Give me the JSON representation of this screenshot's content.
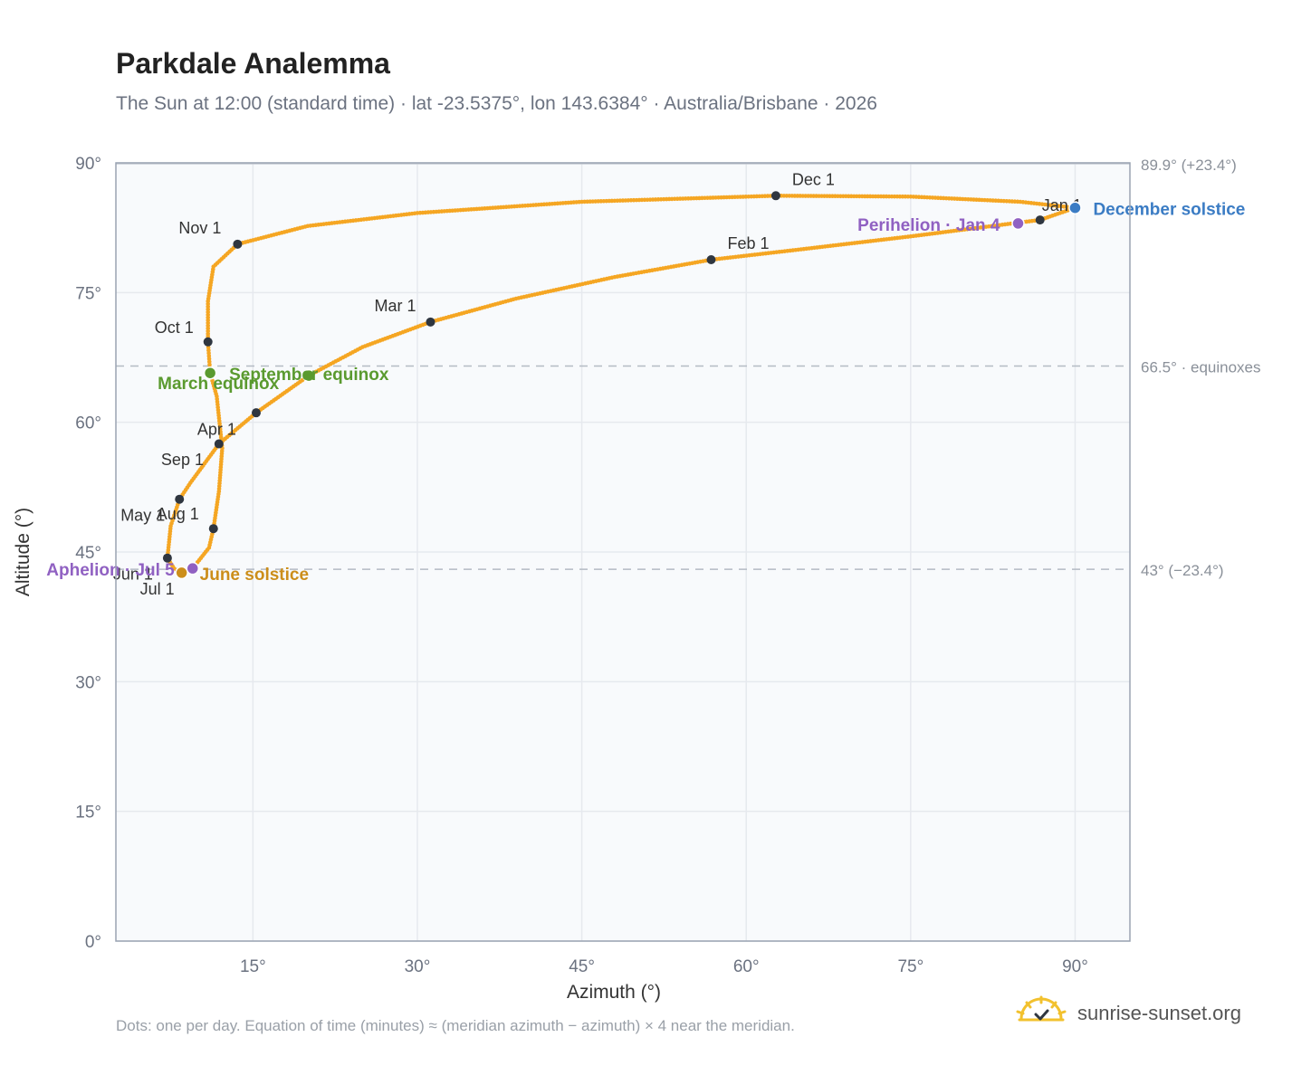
{
  "header": {
    "title": "Parkdale Analemma",
    "subtitle": "The Sun at 12:00 (standard time) · lat -23.5375°, lon 143.6384° · Australia/Brisbane · 2026"
  },
  "footer": {
    "note": "Dots: one per day. Equation of time (minutes) ≈ (meridian azimuth − azimuth) × 4 near the meridian.",
    "brand": "sunrise-sunset.org"
  },
  "colors": {
    "path": "#f5a623",
    "month_dot": "#2f3640",
    "equinox": "#5a9a2f",
    "june_solstice": "#cc8e1a",
    "december_solstice": "#3b7cc4",
    "apsis": "#9061c2",
    "plot_bg": "#f8fafc",
    "grid": "#e6e9ee",
    "axis_text": "#6b7280"
  },
  "chart_data": {
    "type": "scatter",
    "xlabel": "Azimuth (°)",
    "ylabel": "Altitude (°)",
    "xlim": [
      2.5,
      95
    ],
    "ylim": [
      0,
      90
    ],
    "xticks": [
      15,
      30,
      45,
      60,
      75,
      90
    ],
    "xtick_labels": [
      "15°",
      "30°",
      "45°",
      "60°",
      "75°",
      "90°"
    ],
    "yticks": [
      0,
      15,
      30,
      45,
      60,
      75,
      90
    ],
    "ytick_labels": [
      "0°",
      "15°",
      "30°",
      "45°",
      "60°",
      "75°",
      "90°"
    ],
    "grid": true,
    "reference_lines": [
      {
        "y": 89.9,
        "label": "89.9° (+23.4°)",
        "style": "solid"
      },
      {
        "y": 66.5,
        "label": "66.5° · equinoxes",
        "style": "dashed"
      },
      {
        "y": 43,
        "label": "43° (−23.4°)",
        "style": "dashed"
      }
    ],
    "month_markers": [
      {
        "label": "Jan 1",
        "x": 86.8,
        "y": 83.4
      },
      {
        "label": "Feb 1",
        "x": 56.8,
        "y": 78.8
      },
      {
        "label": "Mar 1",
        "x": 31.2,
        "y": 71.6
      },
      {
        "label": "Apr 1",
        "x": 11.9,
        "y": 57.5
      },
      {
        "label": "May 1",
        "x": 8.3,
        "y": 51.1
      },
      {
        "label": "Jun 1",
        "x": 7.2,
        "y": 44.3
      },
      {
        "label": "Jul 1",
        "x": 8.5,
        "y": 42.6
      },
      {
        "label": "Aug 1",
        "x": 11.4,
        "y": 47.7
      },
      {
        "label": "Sep 1",
        "x": 15.3,
        "y": 61.1
      },
      {
        "label": "Oct 1",
        "x": 10.9,
        "y": 69.3
      },
      {
        "label": "Nov 1",
        "x": 13.6,
        "y": 80.6
      },
      {
        "label": "Dec 1",
        "x": 62.7,
        "y": 86.2
      }
    ],
    "events": [
      {
        "label": "March equinox",
        "x": 11.1,
        "y": 65.7
      },
      {
        "label": "September equinox",
        "x": 20.1,
        "y": 65.4
      },
      {
        "label": "June solstice",
        "x": 8.5,
        "y": 42.6
      },
      {
        "label": "December solstice",
        "x": 90,
        "y": 84.8
      },
      {
        "label": "Perihelion · Jan 4",
        "x": 84.8,
        "y": 83.0
      },
      {
        "label": "Aphelion · Jul 5",
        "x": 9.5,
        "y": 43.1
      }
    ],
    "daily_path_keypoints": [
      [
        90.0,
        84.8
      ],
      [
        86.8,
        83.4
      ],
      [
        75.0,
        81.5
      ],
      [
        65.0,
        80.0
      ],
      [
        56.8,
        78.8
      ],
      [
        48.0,
        76.8
      ],
      [
        39.0,
        74.3
      ],
      [
        31.2,
        71.6
      ],
      [
        25.0,
        68.7
      ],
      [
        20.1,
        65.4
      ],
      [
        15.3,
        61.1
      ],
      [
        11.9,
        57.5
      ],
      [
        9.3,
        53.0
      ],
      [
        8.3,
        51.1
      ],
      [
        7.5,
        48.0
      ],
      [
        7.2,
        44.3
      ],
      [
        7.8,
        43.1
      ],
      [
        8.5,
        42.6
      ],
      [
        9.5,
        43.1
      ],
      [
        11.0,
        45.5
      ],
      [
        11.4,
        47.7
      ],
      [
        11.9,
        52.0
      ],
      [
        12.2,
        57.0
      ],
      [
        11.7,
        63.0
      ],
      [
        11.1,
        65.7
      ],
      [
        10.9,
        69.3
      ],
      [
        10.9,
        74.0
      ],
      [
        11.4,
        78.0
      ],
      [
        13.6,
        80.6
      ],
      [
        20.0,
        82.7
      ],
      [
        30.0,
        84.2
      ],
      [
        45.0,
        85.5
      ],
      [
        62.7,
        86.2
      ],
      [
        75.0,
        86.1
      ],
      [
        85.0,
        85.5
      ],
      [
        90.0,
        84.8
      ]
    ]
  }
}
